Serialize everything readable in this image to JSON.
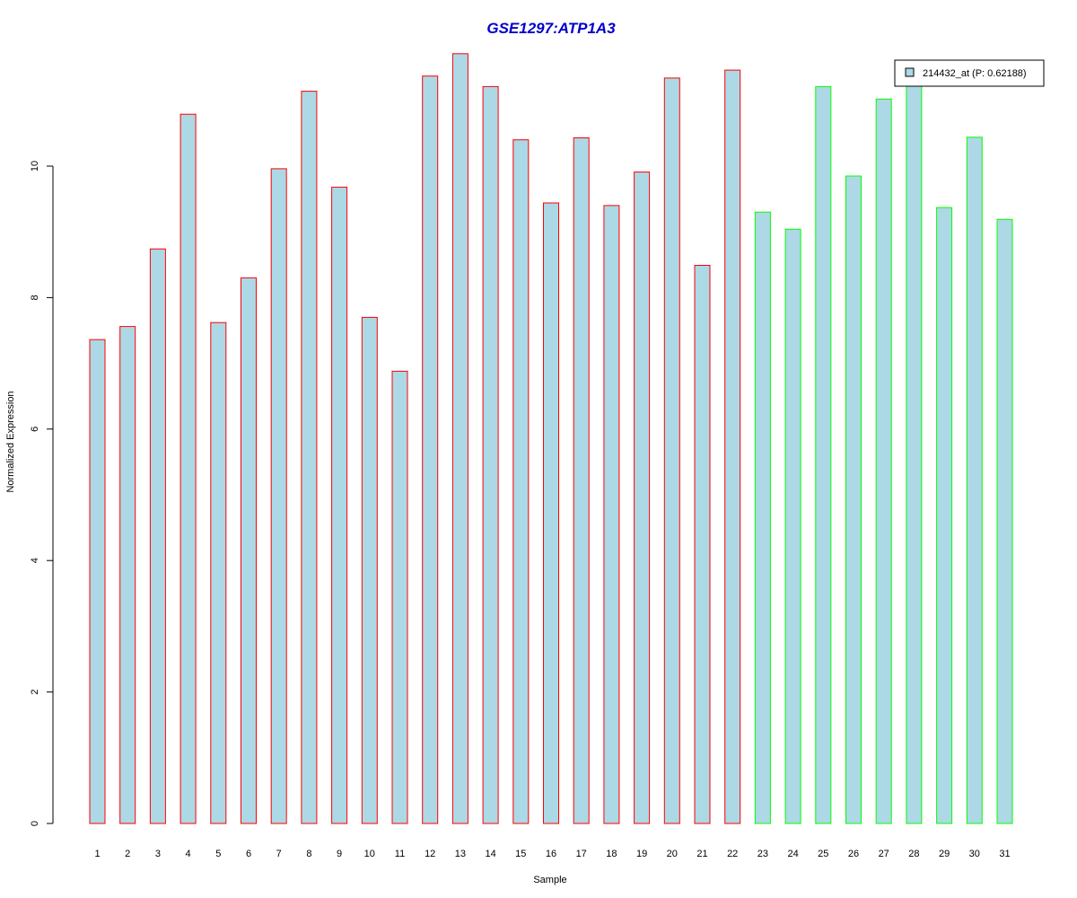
{
  "chart_data": {
    "type": "bar",
    "title": "GSE1297:ATP1A3",
    "xlabel": "Sample",
    "ylabel": "Normalized Expression",
    "categories": [
      "1",
      "2",
      "3",
      "4",
      "5",
      "6",
      "7",
      "8",
      "9",
      "10",
      "11",
      "12",
      "13",
      "14",
      "15",
      "16",
      "17",
      "18",
      "19",
      "20",
      "21",
      "22",
      "23",
      "24",
      "25",
      "26",
      "27",
      "28",
      "29",
      "30",
      "31"
    ],
    "values": [
      7.36,
      7.56,
      8.74,
      10.79,
      7.62,
      8.3,
      9.96,
      11.14,
      9.68,
      7.7,
      6.88,
      11.37,
      11.71,
      11.21,
      10.4,
      9.44,
      10.43,
      9.4,
      9.91,
      11.34,
      8.49,
      11.46,
      9.3,
      9.04,
      11.21,
      9.85,
      11.02,
      11.3,
      9.37,
      10.44,
      9.19
    ],
    "groups": [
      1,
      1,
      1,
      1,
      1,
      1,
      1,
      1,
      1,
      1,
      1,
      1,
      1,
      1,
      1,
      1,
      1,
      1,
      1,
      1,
      1,
      1,
      2,
      2,
      2,
      2,
      2,
      2,
      2,
      2,
      2
    ],
    "yticks": [
      "0",
      "2",
      "4",
      "6",
      "8",
      "10"
    ],
    "ylim": [
      0,
      12
    ],
    "legend": {
      "label": "214432_at (P: 0.62188)",
      "position": "top-right"
    },
    "colors": {
      "title": "#0000cc",
      "bar_fill": "#add8e6",
      "group1_border": "#ff0000",
      "group2_border": "#00ff00",
      "axis": "#000000"
    }
  }
}
